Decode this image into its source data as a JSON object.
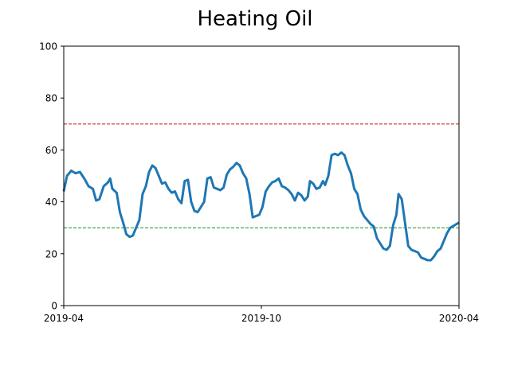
{
  "chart_data": {
    "type": "line",
    "title": "Heating Oil",
    "xlabel": "",
    "ylabel": "",
    "xlim": [
      "2019-04-01",
      "2020-04-01"
    ],
    "ylim": [
      0,
      100
    ],
    "yticks": [
      0,
      20,
      40,
      60,
      80,
      100
    ],
    "xticks": [
      {
        "date": "2019-04-01",
        "label": "2019-04"
      },
      {
        "date": "2019-10-01",
        "label": "2019-10"
      },
      {
        "date": "2020-04-01",
        "label": "2020-04"
      }
    ],
    "grid": false,
    "reference_lines": [
      {
        "y": 70,
        "color": "#d62728",
        "style": "dashed"
      },
      {
        "y": 30,
        "color": "#2ca02c",
        "style": "dashed"
      }
    ],
    "series": [
      {
        "color": "#1f77b4",
        "points": [
          [
            "2019-04-01",
            44
          ],
          [
            "2019-04-04",
            50
          ],
          [
            "2019-04-08",
            52
          ],
          [
            "2019-04-12",
            51
          ],
          [
            "2019-04-16",
            51.5
          ],
          [
            "2019-04-20",
            49
          ],
          [
            "2019-04-24",
            46
          ],
          [
            "2019-04-28",
            45
          ],
          [
            "2019-05-01",
            40.5
          ],
          [
            "2019-05-04",
            41
          ],
          [
            "2019-05-08",
            46
          ],
          [
            "2019-05-12",
            47.5
          ],
          [
            "2019-05-14",
            49
          ],
          [
            "2019-05-16",
            45
          ],
          [
            "2019-05-20",
            43.5
          ],
          [
            "2019-05-23",
            36
          ],
          [
            "2019-05-26",
            32
          ],
          [
            "2019-05-29",
            27.5
          ],
          [
            "2019-06-01",
            26.5
          ],
          [
            "2019-06-04",
            27
          ],
          [
            "2019-06-07",
            30
          ],
          [
            "2019-06-10",
            33
          ],
          [
            "2019-06-13",
            43
          ],
          [
            "2019-06-16",
            46
          ],
          [
            "2019-06-19",
            51.5
          ],
          [
            "2019-06-22",
            54
          ],
          [
            "2019-06-25",
            53
          ],
          [
            "2019-06-28",
            50
          ],
          [
            "2019-07-01",
            47
          ],
          [
            "2019-07-04",
            47.5
          ],
          [
            "2019-07-07",
            45
          ],
          [
            "2019-07-10",
            43.5
          ],
          [
            "2019-07-13",
            44
          ],
          [
            "2019-07-16",
            41
          ],
          [
            "2019-07-19",
            39.5
          ],
          [
            "2019-07-22",
            48
          ],
          [
            "2019-07-25",
            48.5
          ],
          [
            "2019-07-28",
            40
          ],
          [
            "2019-07-31",
            36.5
          ],
          [
            "2019-08-03",
            36
          ],
          [
            "2019-08-06",
            38
          ],
          [
            "2019-08-09",
            40
          ],
          [
            "2019-08-12",
            49
          ],
          [
            "2019-08-15",
            49.5
          ],
          [
            "2019-08-18",
            45.5
          ],
          [
            "2019-08-21",
            45
          ],
          [
            "2019-08-24",
            44.5
          ],
          [
            "2019-08-27",
            45.5
          ],
          [
            "2019-08-30",
            50.5
          ],
          [
            "2019-09-02",
            52.5
          ],
          [
            "2019-09-05",
            53.5
          ],
          [
            "2019-09-08",
            55
          ],
          [
            "2019-09-11",
            54
          ],
          [
            "2019-09-14",
            51
          ],
          [
            "2019-09-17",
            49
          ],
          [
            "2019-09-20",
            43
          ],
          [
            "2019-09-23",
            34
          ],
          [
            "2019-09-26",
            34.5
          ],
          [
            "2019-09-29",
            35
          ],
          [
            "2019-10-02",
            38
          ],
          [
            "2019-10-05",
            44
          ],
          [
            "2019-10-08",
            46
          ],
          [
            "2019-10-11",
            47.5
          ],
          [
            "2019-10-14",
            48
          ],
          [
            "2019-10-17",
            49
          ],
          [
            "2019-10-20",
            46
          ],
          [
            "2019-10-23",
            45.5
          ],
          [
            "2019-10-26",
            44.5
          ],
          [
            "2019-10-29",
            43
          ],
          [
            "2019-11-01",
            40.5
          ],
          [
            "2019-11-04",
            43.5
          ],
          [
            "2019-11-07",
            42.5
          ],
          [
            "2019-11-10",
            40.5
          ],
          [
            "2019-11-13",
            42
          ],
          [
            "2019-11-15",
            48
          ],
          [
            "2019-11-18",
            47
          ],
          [
            "2019-11-21",
            45
          ],
          [
            "2019-11-24",
            45.5
          ],
          [
            "2019-11-27",
            48
          ],
          [
            "2019-11-29",
            46.5
          ],
          [
            "2019-12-02",
            50
          ],
          [
            "2019-12-05",
            58
          ],
          [
            "2019-12-08",
            58.5
          ],
          [
            "2019-12-11",
            58
          ],
          [
            "2019-12-14",
            59
          ],
          [
            "2019-12-17",
            58
          ],
          [
            "2019-12-20",
            54
          ],
          [
            "2019-12-23",
            51
          ],
          [
            "2019-12-26",
            45
          ],
          [
            "2019-12-29",
            43
          ],
          [
            "2020-01-01",
            37
          ],
          [
            "2020-01-04",
            34.5
          ],
          [
            "2020-01-07",
            33
          ],
          [
            "2020-01-10",
            31.5
          ],
          [
            "2020-01-13",
            30.5
          ],
          [
            "2020-01-16",
            26
          ],
          [
            "2020-01-19",
            24
          ],
          [
            "2020-01-22",
            22
          ],
          [
            "2020-01-25",
            21.5
          ],
          [
            "2020-01-28",
            23
          ],
          [
            "2020-01-31",
            31
          ],
          [
            "2020-02-03",
            35
          ],
          [
            "2020-02-05",
            43
          ],
          [
            "2020-02-08",
            41
          ],
          [
            "2020-02-11",
            32
          ],
          [
            "2020-02-14",
            23
          ],
          [
            "2020-02-17",
            21.5
          ],
          [
            "2020-02-20",
            21
          ],
          [
            "2020-02-23",
            20.5
          ],
          [
            "2020-02-26",
            18.5
          ],
          [
            "2020-02-29",
            18
          ],
          [
            "2020-03-03",
            17.5
          ],
          [
            "2020-03-06",
            17.5
          ],
          [
            "2020-03-09",
            19
          ],
          [
            "2020-03-12",
            21
          ],
          [
            "2020-03-15",
            22
          ],
          [
            "2020-03-18",
            25
          ],
          [
            "2020-03-21",
            28
          ],
          [
            "2020-03-24",
            30
          ],
          [
            "2020-03-28",
            31
          ],
          [
            "2020-04-01",
            32
          ]
        ]
      }
    ]
  }
}
